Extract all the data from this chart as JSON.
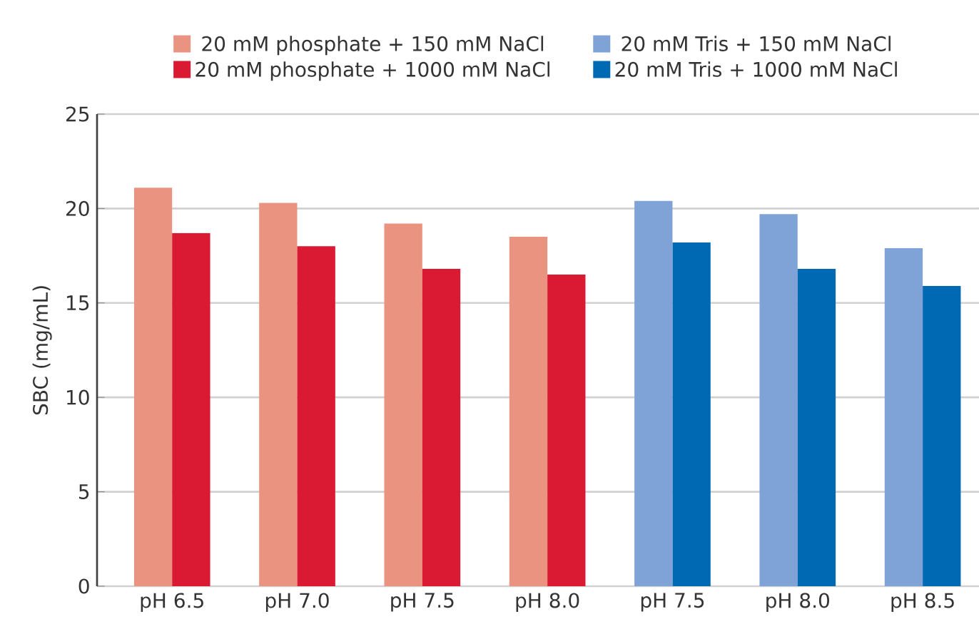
{
  "chart_data": {
    "type": "bar",
    "ylabel": "SBC (mg/mL)",
    "categories": [
      "pH 6.5",
      "pH 7.0",
      "pH 7.5",
      "pH 8.0",
      "pH 7.5",
      "pH 8.0",
      "pH 8.5"
    ],
    "series": [
      {
        "name": "20 mM phosphate + 150 mM NaCl",
        "color": "#e99380",
        "values": [
          21.1,
          20.3,
          19.2,
          18.5,
          null,
          null,
          null
        ]
      },
      {
        "name": "20 mM phosphate + 1000 mM NaCl",
        "color": "#da1a32",
        "values": [
          18.7,
          18.0,
          16.8,
          16.5,
          null,
          null,
          null
        ]
      },
      {
        "name": "20 mM Tris + 150 mM NaCl",
        "color": "#7fa3d6",
        "values": [
          null,
          null,
          null,
          null,
          20.4,
          19.7,
          17.9
        ]
      },
      {
        "name": "20 mM Tris + 1000 mM NaCl",
        "color": "#0069b4",
        "values": [
          null,
          null,
          null,
          null,
          18.2,
          16.8,
          15.9
        ]
      }
    ],
    "ylim": [
      0,
      25
    ],
    "yticks": [
      0,
      5,
      10,
      15,
      20,
      25
    ],
    "grid": "y",
    "legend": "top"
  }
}
